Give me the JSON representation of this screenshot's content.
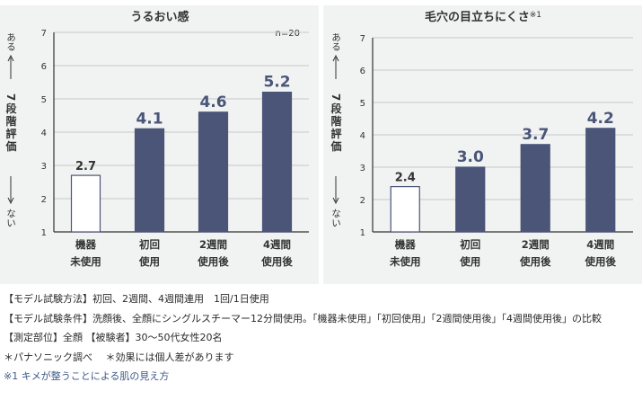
{
  "chart_data": [
    {
      "type": "bar",
      "title": "うるおい感",
      "sample_note": "n=20",
      "y_label": {
        "top": "ある",
        "middle": "7段階評価",
        "bottom": "ない"
      },
      "ylim": [
        1,
        7
      ],
      "yticks": [
        "1",
        "2",
        "3",
        "4",
        "5",
        "6",
        "7"
      ],
      "categories": [
        [
          "機器",
          "未使用"
        ],
        [
          "初回",
          "使用"
        ],
        [
          "2週間",
          "使用後"
        ],
        [
          "4週間",
          "使用後"
        ]
      ],
      "values": [
        2.7,
        4.1,
        4.6,
        5.2
      ],
      "value_labels": [
        "2.7",
        "4.1",
        "4.6",
        "5.2"
      ],
      "hollow": [
        true,
        false,
        false,
        false
      ],
      "grid": true
    },
    {
      "type": "bar",
      "title": "毛穴の目立ちにくさ",
      "title_note": "※1",
      "y_label": {
        "top": "ある",
        "middle": "7段階評価",
        "bottom": "ない"
      },
      "ylim": [
        1,
        7
      ],
      "yticks": [
        "1",
        "2",
        "3",
        "4",
        "5",
        "6",
        "7"
      ],
      "categories": [
        [
          "機器",
          "未使用"
        ],
        [
          "初回",
          "使用"
        ],
        [
          "2週間",
          "使用後"
        ],
        [
          "4週間",
          "使用後"
        ]
      ],
      "values": [
        2.4,
        3.0,
        3.7,
        4.2
      ],
      "value_labels": [
        "2.4",
        "3.0",
        "3.7",
        "4.2"
      ],
      "hollow": [
        true,
        false,
        false,
        false
      ],
      "grid": true
    }
  ],
  "colors": {
    "bar": "#4a5578",
    "axis": "#333333",
    "grid": "#c8c8c8",
    "panel": "#f1f2f2",
    "footnote": "#3d5a8a"
  },
  "notes": {
    "line1": "【モデル試験方法】初回、2週間、4週間連用　1回/1日使用",
    "line2": "【モデル試験条件】洗顔後、全顔にシングルスチーマー12分間使用。「機器未使用」「初回使用」「2週間使用後」「4週間使用後」の比較",
    "line3": "【測定部位】全顔 【被験者】30～50代女性20名",
    "line4": "＊パナソニック調べ　 ＊効果には個人差があります",
    "footnote": "※1 キメが整うことによる肌の見え方"
  }
}
